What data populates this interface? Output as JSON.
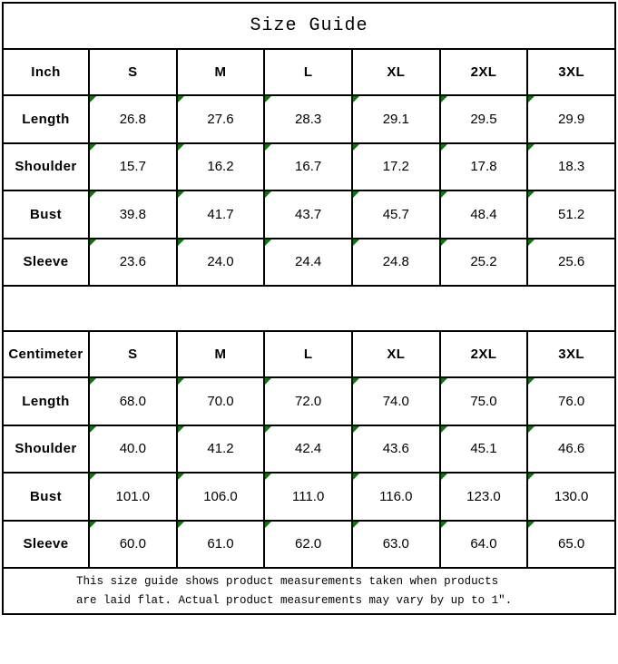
{
  "title": "Size Guide",
  "sizes": [
    "S",
    "M",
    "L",
    "XL",
    "2XL",
    "3XL"
  ],
  "tables": [
    {
      "unit_label": "Inch",
      "rows": [
        {
          "label": "Length",
          "values": [
            "26.8",
            "27.6",
            "28.3",
            "29.1",
            "29.5",
            "29.9"
          ]
        },
        {
          "label": "Shoulder",
          "values": [
            "15.7",
            "16.2",
            "16.7",
            "17.2",
            "17.8",
            "18.3"
          ]
        },
        {
          "label": "Bust",
          "values": [
            "39.8",
            "41.7",
            "43.7",
            "45.7",
            "48.4",
            "51.2"
          ]
        },
        {
          "label": "Sleeve",
          "values": [
            "23.6",
            "24.0",
            "24.4",
            "24.8",
            "25.2",
            "25.6"
          ]
        }
      ]
    },
    {
      "unit_label": "Centimeter",
      "rows": [
        {
          "label": "Length",
          "values": [
            "68.0",
            "70.0",
            "72.0",
            "74.0",
            "75.0",
            "76.0"
          ]
        },
        {
          "label": "Shoulder",
          "values": [
            "40.0",
            "41.2",
            "42.4",
            "43.6",
            "45.1",
            "46.6"
          ]
        },
        {
          "label": "Bust",
          "values": [
            "101.0",
            "106.0",
            "111.0",
            "116.0",
            "123.0",
            "130.0"
          ]
        },
        {
          "label": "Sleeve",
          "values": [
            "60.0",
            "61.0",
            "62.0",
            "63.0",
            "64.0",
            "65.0"
          ]
        }
      ]
    }
  ],
  "footer": {
    "line1": "This size guide shows product measurements taken when products",
    "line2": "are laid flat. Actual product measurements may vary by up to 1″."
  },
  "colors": {
    "border": "#000000",
    "text": "#000000",
    "background": "#ffffff",
    "flag_green": "#008000"
  }
}
